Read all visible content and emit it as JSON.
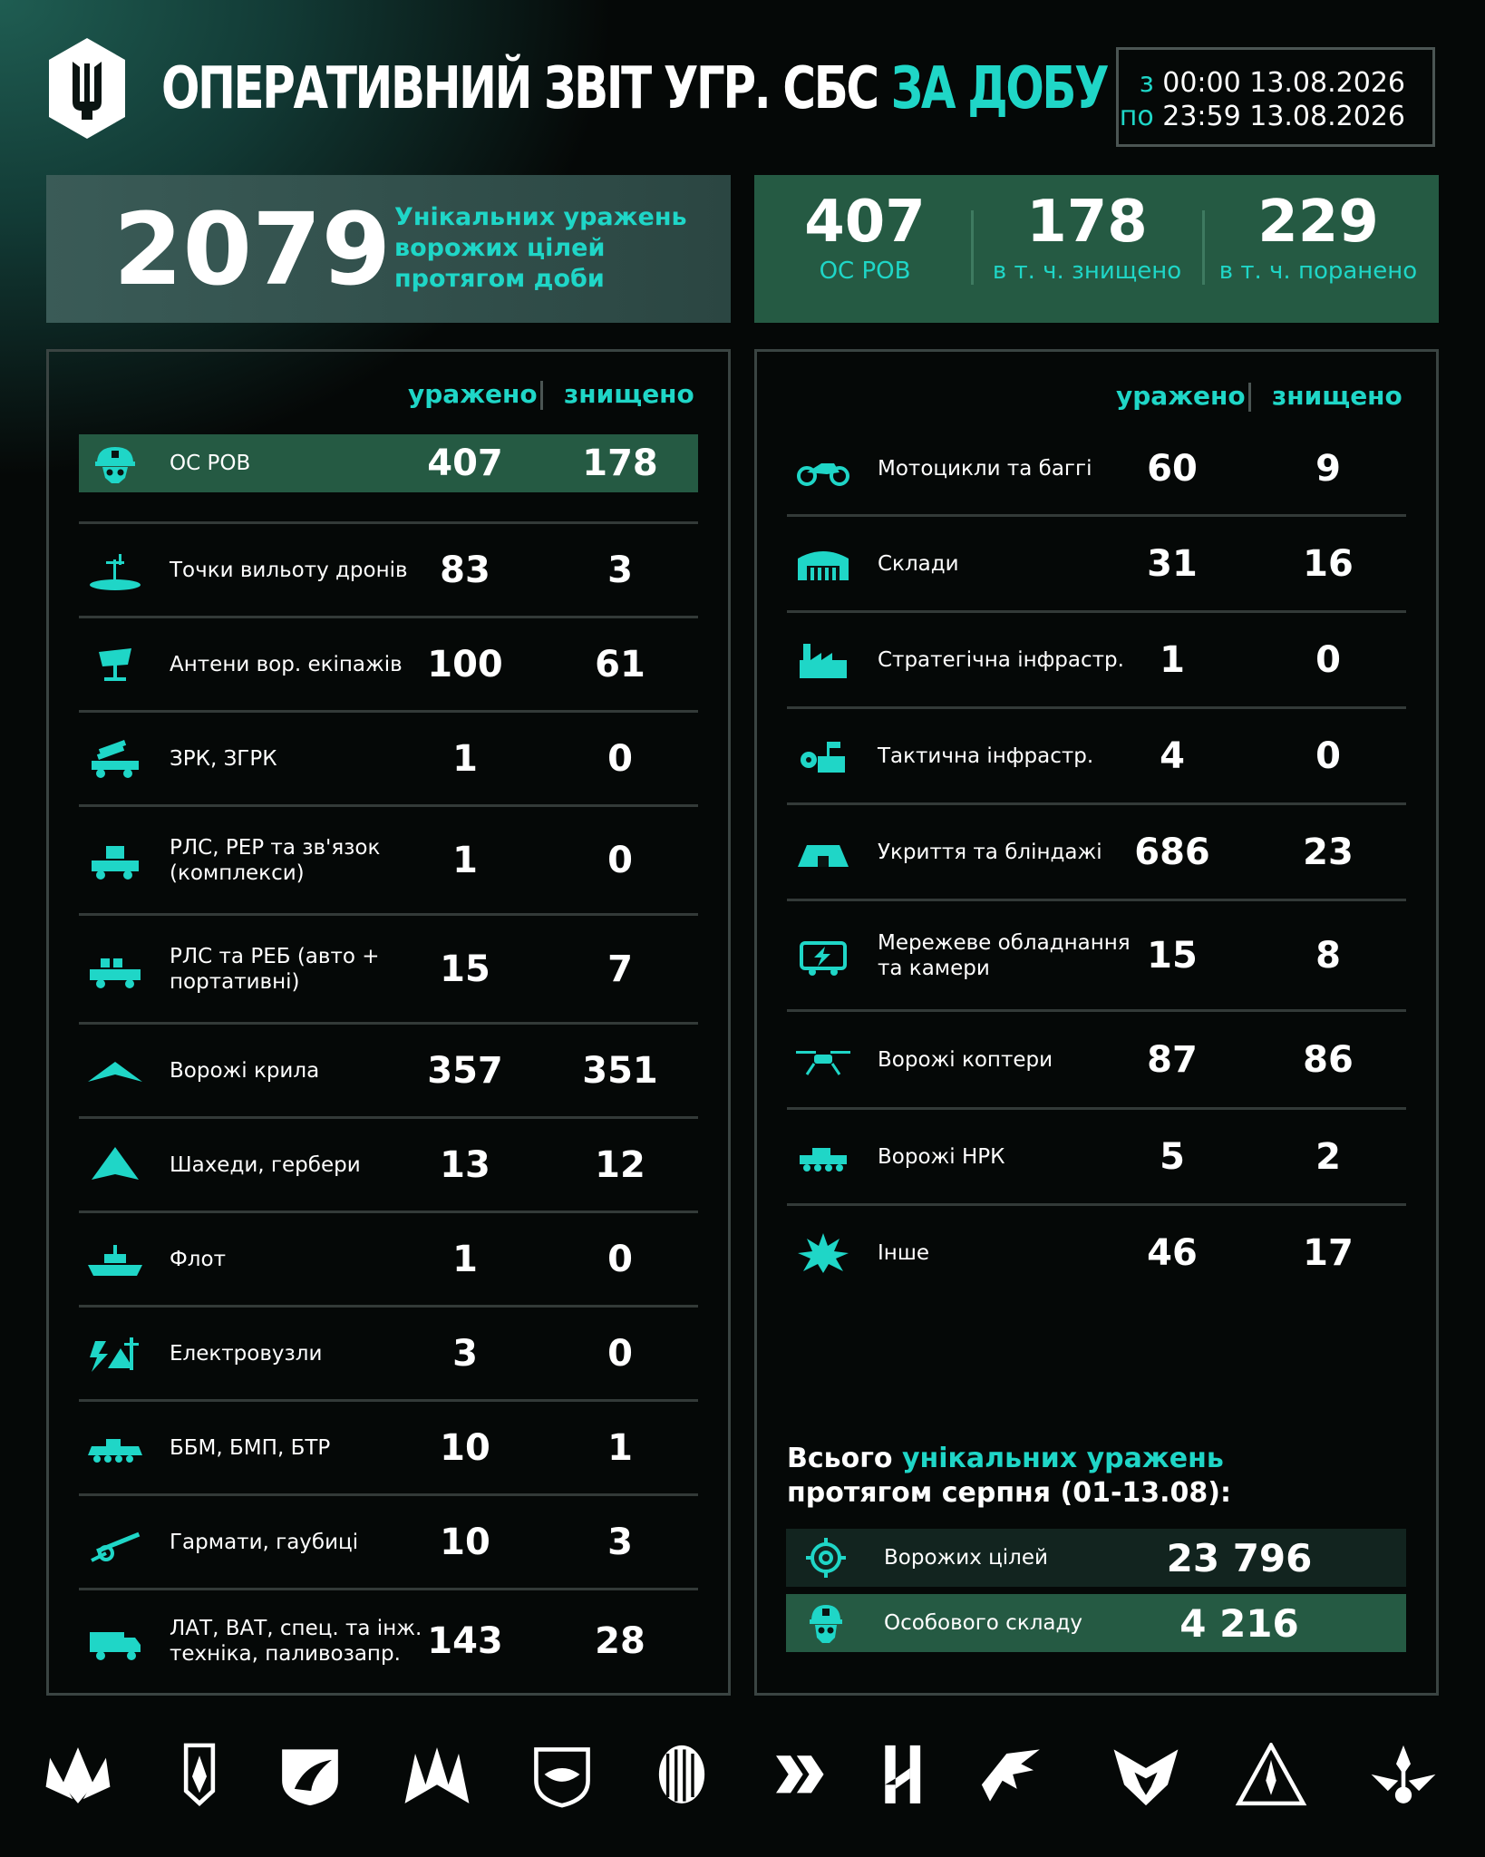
{
  "header": {
    "title_main": "ОПЕРАТИВНИЙ ЗВІТ УГР. СБС ",
    "title_accent": "ЗА ДОБУ",
    "date_from_prefix": "з",
    "date_from": "00:00 13.08.2026",
    "date_to_prefix": "по",
    "date_to": "23:59 13.08.2026"
  },
  "summary": {
    "total": "2079",
    "text_line1": "Унікальних уражень",
    "text_line2": "ворожих цілей",
    "text_line3": "протягом доби"
  },
  "personnel": [
    {
      "value": "407",
      "label": "ОС РОВ"
    },
    {
      "value": "178",
      "label": "в т. ч. знищено"
    },
    {
      "value": "229",
      "label": "в т. ч. поранено"
    }
  ],
  "columns": {
    "hit": "уражено",
    "destroyed": "знищено"
  },
  "left_rows": [
    {
      "icon": "soldier-icon",
      "label": "ОС РОВ",
      "label2": "",
      "hit": "407",
      "destroyed": "178"
    },
    {
      "icon": "drone-launch-point-icon",
      "label": "Точки вильоту дронів",
      "label2": "",
      "hit": "83",
      "destroyed": "3"
    },
    {
      "icon": "antenna-icon",
      "label": "Антени вор. екіпажів",
      "label2": "",
      "hit": "100",
      "destroyed": "61"
    },
    {
      "icon": "missile-launcher-truck-icon",
      "label": "ЗРК, ЗГРК",
      "label2": "",
      "hit": "1",
      "destroyed": "0"
    },
    {
      "icon": "radar-truck-icon",
      "label": "РЛС, РЕР та зв'язок",
      "label2": "(комплекси)",
      "hit": "1",
      "destroyed": "0"
    },
    {
      "icon": "ew-vehicle-icon",
      "label": "РЛС та РЕБ (авто +",
      "label2": "портативні)",
      "hit": "15",
      "destroyed": "7"
    },
    {
      "icon": "wing-drone-icon",
      "label": "Ворожі крила",
      "label2": "",
      "hit": "357",
      "destroyed": "351"
    },
    {
      "icon": "shahed-icon",
      "label": "Шахеди, гербери",
      "label2": "",
      "hit": "13",
      "destroyed": "12"
    },
    {
      "icon": "ship-icon",
      "label": "Флот",
      "label2": "",
      "hit": "1",
      "destroyed": "0"
    },
    {
      "icon": "power-node-icon",
      "label": "Електровузли",
      "label2": "",
      "hit": "3",
      "destroyed": "0"
    },
    {
      "icon": "apc-icon",
      "label": "ББМ, БМП, БТР",
      "label2": "",
      "hit": "10",
      "destroyed": "1"
    },
    {
      "icon": "howitzer-icon",
      "label": "Гармати, гаубиці",
      "label2": "",
      "hit": "10",
      "destroyed": "3"
    },
    {
      "icon": "truck-icon",
      "label": "ЛАТ, ВАТ, спец. та інж.",
      "label2": "техніка, паливозапр.",
      "hit": "143",
      "destroyed": "28"
    }
  ],
  "right_rows": [
    {
      "icon": "motorcycle-icon",
      "label": "Мотоцикли та баггі",
      "label2": "",
      "hit": "60",
      "destroyed": "9"
    },
    {
      "icon": "warehouse-icon",
      "label": "Склади",
      "label2": "",
      "hit": "31",
      "destroyed": "16"
    },
    {
      "icon": "factory-icon",
      "label": "Стратегічна інфрастр.",
      "label2": "",
      "hit": "1",
      "destroyed": "0"
    },
    {
      "icon": "tactical-infra-icon",
      "label": "Тактична інфрастр.",
      "label2": "",
      "hit": "4",
      "destroyed": "0"
    },
    {
      "icon": "bunker-icon",
      "label": "Укриття та бліндажі",
      "label2": "",
      "hit": "686",
      "destroyed": "23"
    },
    {
      "icon": "network-equipment-icon",
      "label": "Мережеве обладнання",
      "label2": "та камери",
      "hit": "15",
      "destroyed": "8"
    },
    {
      "icon": "copter-icon",
      "label": "Ворожі коптери",
      "label2": "",
      "hit": "87",
      "destroyed": "86"
    },
    {
      "icon": "ugv-icon",
      "label": "Ворожі НРК",
      "label2": "",
      "hit": "5",
      "destroyed": "2"
    },
    {
      "icon": "explosion-icon",
      "label": "Інше",
      "label2": "",
      "hit": "46",
      "destroyed": "17"
    }
  ],
  "month_total": {
    "title_prefix": "Всього ",
    "title_accent": "унікальних уражень",
    "title_line2": "протягом серпня (01-13.08):",
    "rows": [
      {
        "icon": "target-icon",
        "label": "Ворожих цілей",
        "value": "23 796"
      },
      {
        "icon": "soldier-icon",
        "label": "Особового складу",
        "value": "4 216"
      }
    ]
  },
  "colors": {
    "accent": "#1fd6c7",
    "green_panel": "#255a43",
    "background": "#050807"
  },
  "footer_badges": [
    "unit-emblem-1-icon",
    "unit-emblem-2-icon",
    "unit-emblem-3-icon",
    "unit-emblem-4-icon",
    "unit-emblem-5-icon",
    "unit-emblem-6-icon",
    "unit-emblem-7-icon",
    "unit-emblem-8-icon",
    "unit-emblem-9-icon",
    "unit-emblem-10-icon",
    "unit-emblem-11-icon",
    "unit-emblem-12-icon"
  ]
}
